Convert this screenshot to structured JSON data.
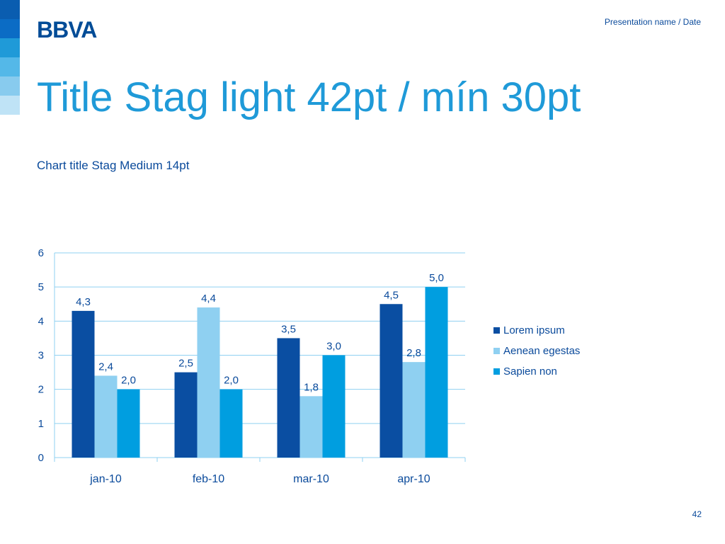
{
  "brand": {
    "logo_text": "BBVA",
    "stripe_colors": [
      "#0a5db0",
      "#0b6cc5",
      "#1f9ad8",
      "#54b8e8",
      "#88cbee",
      "#bfe3f6"
    ],
    "logo_color": "#004c97"
  },
  "header": {
    "meta": "Presentation name / Date"
  },
  "slide": {
    "title": "Title Stag light 42pt / mín 30pt",
    "chart_title": "Chart title Stag Medium 14pt",
    "page_number": "42"
  },
  "chart_data": {
    "type": "bar",
    "categories": [
      "jan-10",
      "feb-10",
      "mar-10",
      "apr-10"
    ],
    "series": [
      {
        "name": "Lorem ipsum",
        "values": [
          4.3,
          2.5,
          3.5,
          4.5
        ],
        "labels": [
          "4,3",
          "2,5",
          "3,5",
          "4,5"
        ],
        "color": "#0a4ea2"
      },
      {
        "name": "Aenean egestas",
        "values": [
          2.4,
          4.4,
          1.8,
          2.8
        ],
        "labels": [
          "2,4",
          "4,4",
          "1,8",
          "2,8"
        ],
        "color": "#8fd0f1"
      },
      {
        "name": "Sapien non",
        "values": [
          2.0,
          2.0,
          3.0,
          5.0
        ],
        "labels": [
          "2,0",
          "2,0",
          "3,0",
          "5,0"
        ],
        "color": "#009ee0"
      }
    ],
    "y_ticks": [
      "0",
      "1",
      "2",
      "3",
      "4",
      "5",
      "6"
    ],
    "ylim": [
      0,
      6
    ],
    "grid": true,
    "legend_position": "right"
  }
}
